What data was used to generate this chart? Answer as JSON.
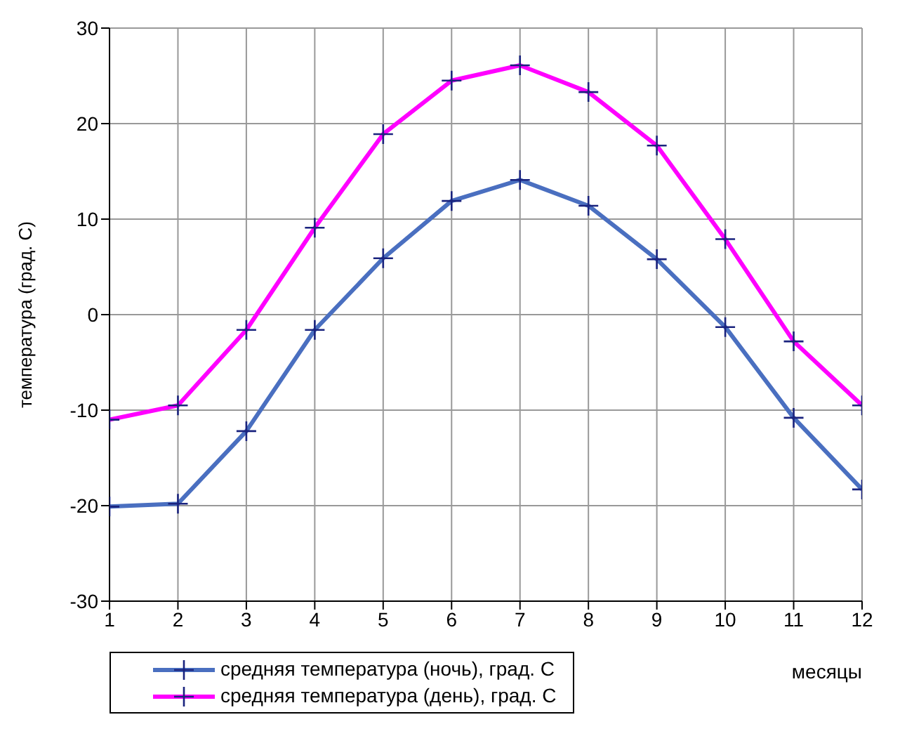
{
  "chart_data": {
    "type": "line",
    "xlabel": "месяцы",
    "ylabel": "температура (град. С)",
    "x": [
      1,
      2,
      3,
      4,
      5,
      6,
      7,
      8,
      9,
      10,
      11,
      12
    ],
    "series": [
      {
        "name": "средняя температура (ночь), град. С",
        "color": "#4a6fc0",
        "values": [
          -20.1,
          -19.8,
          -12.2,
          -1.6,
          5.9,
          11.9,
          14.1,
          11.4,
          5.8,
          -1.3,
          -10.8,
          -18.3
        ]
      },
      {
        "name": "средняя температура (день), град. С",
        "color": "#ff00ff",
        "values": [
          -11,
          -9.5,
          -1.6,
          9.1,
          18.9,
          24.5,
          26.1,
          23.3,
          17.7,
          7.9,
          -2.8,
          -9.5
        ]
      }
    ],
    "xlim": [
      1,
      12
    ],
    "xticks": [
      1,
      2,
      3,
      4,
      5,
      6,
      7,
      8,
      9,
      10,
      11,
      12
    ],
    "ylim": [
      -30,
      30
    ],
    "yticks": [
      -30,
      -20,
      -10,
      0,
      10,
      20,
      30
    ],
    "grid": true,
    "legend": "bottom left",
    "marker": "cross",
    "line_style": "solid"
  }
}
